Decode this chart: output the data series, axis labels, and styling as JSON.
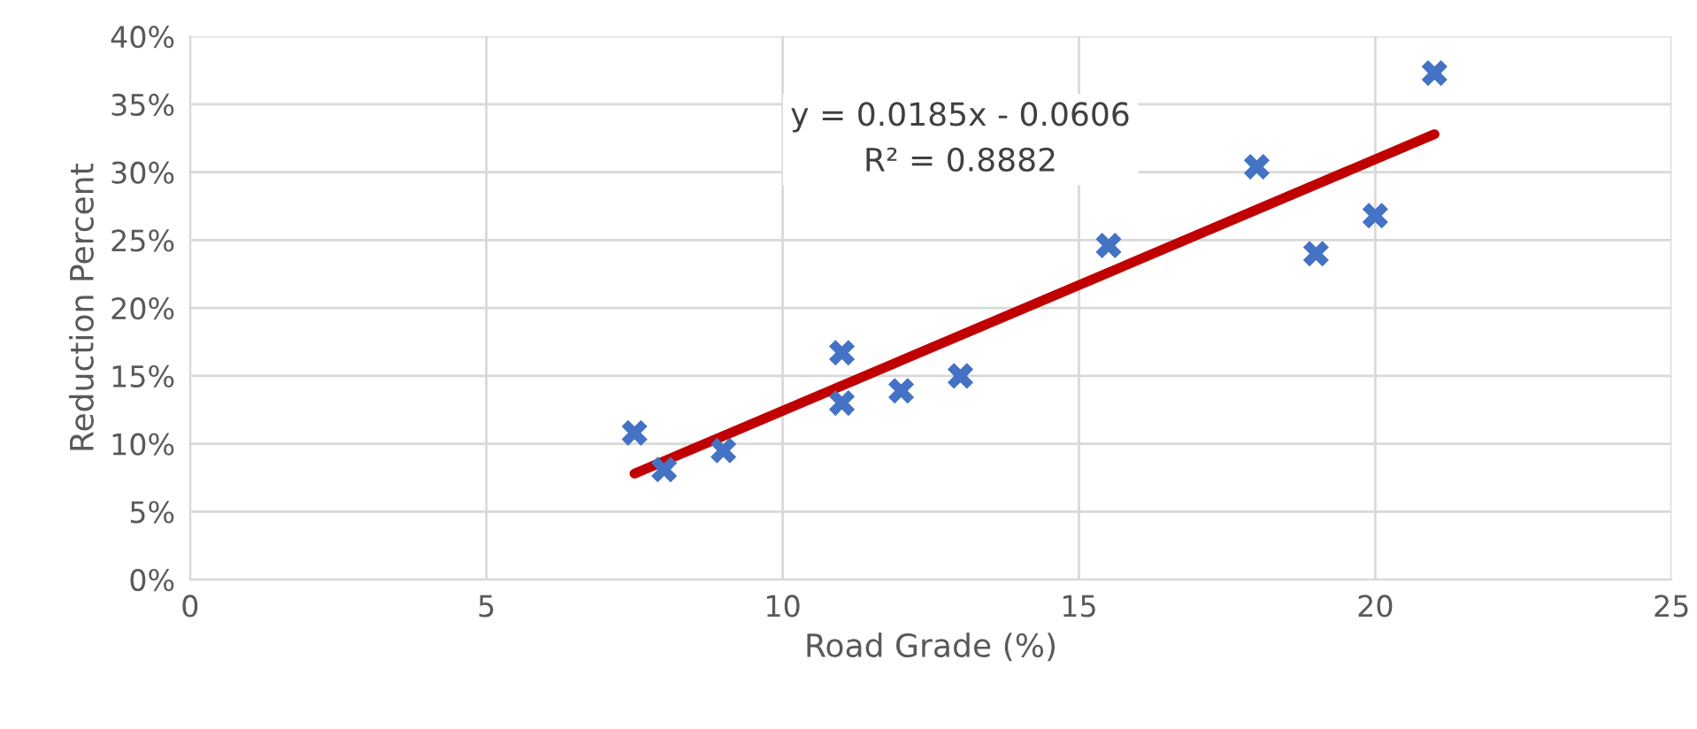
{
  "chart_data": {
    "type": "scatter",
    "xlabel": "Road Grade (%)",
    "ylabel": "Reduction Percent",
    "xlim": [
      0,
      25
    ],
    "xticks": [
      0,
      5,
      10,
      15,
      20,
      25
    ],
    "ylim": [
      0,
      0.4
    ],
    "yticks": [
      {
        "value": 0,
        "label": "0%"
      },
      {
        "value": 0.05,
        "label": "5%"
      },
      {
        "value": 0.1,
        "label": "10%"
      },
      {
        "value": 0.15,
        "label": "15%"
      },
      {
        "value": 0.2,
        "label": "20%"
      },
      {
        "value": 0.25,
        "label": "25%"
      },
      {
        "value": 0.3,
        "label": "30%"
      },
      {
        "value": 0.35,
        "label": "35%"
      },
      {
        "value": 0.4,
        "label": "40%"
      }
    ],
    "grid": true,
    "series": [
      {
        "marker": "cross",
        "color": "#4472c4",
        "x": [
          7.5,
          8,
          9,
          11,
          11,
          12,
          13,
          15.5,
          18,
          19,
          20,
          21
        ],
        "values": [
          0.108,
          0.081,
          0.095,
          0.167,
          0.13,
          0.139,
          0.15,
          0.246,
          0.304,
          0.24,
          0.268,
          0.373
        ]
      },
      {
        "type": "line",
        "marker": "none",
        "color": "#c00000",
        "x": [
          7.5,
          21
        ],
        "values": [
          0.078,
          0.328
        ]
      }
    ],
    "annotations": [
      "y = 0.0185x - 0.0606\nR² = 0.8882"
    ]
  }
}
